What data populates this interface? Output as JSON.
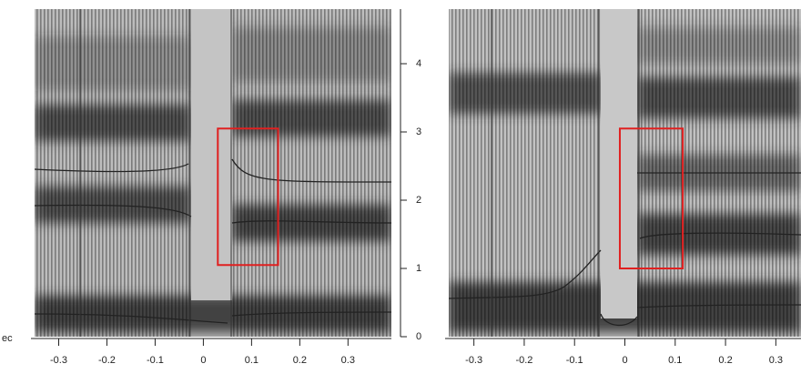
{
  "panels": [
    {
      "xlim": [
        -0.35,
        0.39
      ],
      "xticks": [
        -0.3,
        -0.2,
        -0.1,
        0,
        0.1,
        0.2,
        0.3
      ],
      "highlight": {
        "x": [
          0.03,
          0.155
        ],
        "y": [
          1.05,
          3.05
        ]
      }
    },
    {
      "xlim": [
        -0.35,
        0.35
      ],
      "xticks": [
        -0.3,
        -0.2,
        -0.1,
        0,
        0.1,
        0.2,
        0.3
      ],
      "highlight": {
        "x": [
          -0.01,
          0.115
        ],
        "y": [
          1.0,
          3.05
        ]
      }
    }
  ],
  "frequency_axis": {
    "ylim": [
      0,
      4.8
    ],
    "yticks": [
      0,
      1,
      2,
      3,
      4
    ]
  },
  "time_unit_label": "ec"
}
